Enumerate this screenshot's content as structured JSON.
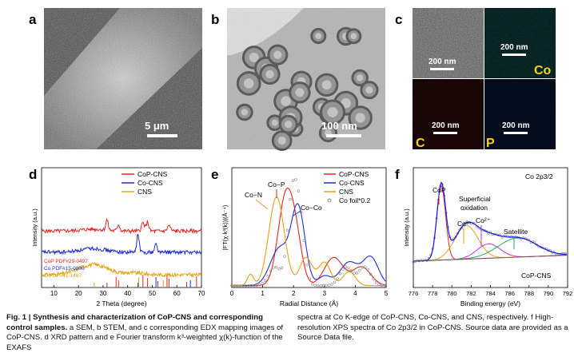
{
  "panel_labels": {
    "a": "a",
    "b": "b",
    "c": "c",
    "d": "d",
    "e": "e",
    "f": "f"
  },
  "scale_bars": {
    "a": "5 μm",
    "b": "100 nm",
    "c_img": "200 nm",
    "c_co": "200 nm",
    "c_c": "200 nm",
    "c_p": "200 nm"
  },
  "edx_labels": {
    "co": "Co",
    "c": "C",
    "p": "P"
  },
  "colors": {
    "cop": "#e8251f",
    "co": "#1f2dd6",
    "cns": "#e6a10f",
    "foil": "#8a8a8a",
    "xps_fit": "#1a1aff"
  },
  "caption": {
    "fig_label": "Fig. 1 | Synthesis and characterization of CoP-CNS and corresponding control samples.",
    "part1": " a SEM, b STEM, and c corresponding EDX mapping images of CoP-CNS. d XRD pattern and e Fourier transform k³-weighted χ(k)-function of the EXAFS",
    "part2": "spectra at Co K-edge of CoP-CNS, Co-CNS, and CNS, respectively. f High-resolution XPS spectra of Co 2p3/2 in CoP-CNS. Source data are provided as a Source Data file."
  },
  "chart_data": [
    {
      "id": "d",
      "type": "line",
      "xlabel": "2 Theta (degree)",
      "ylabel": "Intensity (a.u.)",
      "xlim": [
        5,
        70
      ],
      "xticks": [
        10,
        20,
        30,
        40,
        50,
        60,
        70
      ],
      "legend": [
        "CoP-CNS",
        "Co-CNS",
        "CNS"
      ],
      "series": [
        {
          "name": "CoP-CNS",
          "offset": 0.8,
          "peaks": [
            [
              31.6,
              0.55,
              0.5
            ],
            [
              36.3,
              0.35,
              0.5
            ],
            [
              46.2,
              0.45,
              0.6
            ],
            [
              48.1,
              0.5,
              0.5
            ],
            [
              56.8,
              0.3,
              0.6
            ],
            [
              26,
              0.1,
              5
            ]
          ]
        },
        {
          "name": "Co-CNS",
          "offset": 0.5,
          "peaks": [
            [
              44.2,
              0.95,
              0.5
            ],
            [
              51.5,
              0.45,
              0.5
            ],
            [
              26,
              0.2,
              5
            ]
          ]
        },
        {
          "name": "CNS",
          "offset": 0.18,
          "peaks": [
            [
              26,
              0.55,
              6
            ],
            [
              43,
              0.1,
              4
            ]
          ]
        }
      ],
      "references": [
        {
          "label": "CoP PDF#29-0497",
          "positions": [
            31.6,
            35.3,
            36.3,
            46.2,
            48.1,
            52.3,
            56.0,
            56.8,
            64.0,
            68.0
          ]
        },
        {
          "label": "Co PDF#15-0806",
          "positions": [
            44.2,
            51.5,
            65.5
          ]
        },
        {
          "label": "C PDF#41-1487",
          "positions": [
            26.4,
            44.5,
            54.5
          ]
        }
      ]
    },
    {
      "id": "e",
      "type": "line",
      "xlabel": "Radial Distance (Å)",
      "ylabel": "|FT(χ·k³(k))|(Å⁻⁴)",
      "xlim": [
        0,
        5
      ],
      "xticks": [
        0,
        1,
        2,
        3,
        4,
        5
      ],
      "legend": [
        "CoP-CNS",
        "Co-CNS",
        "CNS",
        "Co foil*0.2"
      ],
      "annotations": [
        "Co−N",
        "Co−P",
        "Co−Co"
      ],
      "series": [
        {
          "name": "CoP-CNS",
          "peaks": [
            [
              1.75,
              0.95,
              0.25
            ],
            [
              2.1,
              0.35,
              0.2
            ],
            [
              3.3,
              0.3,
              0.3
            ],
            [
              4.2,
              0.2,
              0.3
            ]
          ]
        },
        {
          "name": "Co-CNS",
          "peaks": [
            [
              1.55,
              0.4,
              0.3
            ],
            [
              2.15,
              0.82,
              0.22
            ],
            [
              3.0,
              0.1,
              0.2
            ],
            [
              3.8,
              0.25,
              0.3
            ],
            [
              4.5,
              0.3,
              0.25
            ]
          ]
        },
        {
          "name": "CNS",
          "peaks": [
            [
              0.6,
              0.12,
              0.1
            ],
            [
              1.45,
              0.95,
              0.25
            ],
            [
              2.4,
              0.3,
              0.2
            ],
            [
              3.0,
              0.25,
              0.2
            ],
            [
              3.8,
              0.15,
              0.2
            ]
          ]
        },
        {
          "name": "Co foil*0.2",
          "peaks": [
            [
              1.95,
              0.9,
              0.15
            ],
            [
              2.2,
              0.7,
              0.15
            ],
            [
              1.4,
              0.2,
              0.2
            ],
            [
              3.7,
              0.2,
              0.2
            ],
            [
              4.3,
              0.2,
              0.2
            ]
          ]
        }
      ]
    },
    {
      "id": "f",
      "type": "line",
      "title": "Co 2p3/2",
      "xlabel": "Binding energy (eV)",
      "ylabel": "Intensity (a.u.)",
      "xlim": [
        776,
        792
      ],
      "xticks": [
        776,
        778,
        780,
        782,
        784,
        786,
        788,
        790,
        792
      ],
      "annotations": [
        "CoP",
        "Superficial oxidation",
        "Co³⁺",
        "Co²⁺",
        "Satellite"
      ],
      "sample_label": "CoP-CNS",
      "components": [
        {
          "name": "CoP",
          "center": 778.9,
          "amp": 0.62,
          "width": 0.45,
          "color": "#e8251f"
        },
        {
          "name": "Co³⁺",
          "center": 781.5,
          "amp": 0.28,
          "width": 1.2,
          "color": "#e6a10f"
        },
        {
          "name": "Co²⁺",
          "center": 783.8,
          "amp": 0.12,
          "width": 1.2,
          "color": "#cc33cc"
        },
        {
          "name": "Satellite",
          "center": 786.8,
          "amp": 0.16,
          "width": 2.0,
          "color": "#26a86a"
        }
      ]
    }
  ]
}
